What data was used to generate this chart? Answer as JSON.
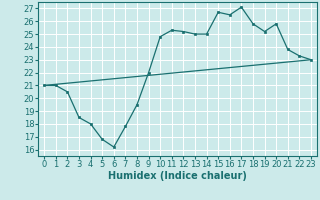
{
  "title": "",
  "xlabel": "Humidex (Indice chaleur)",
  "ylabel": "",
  "bg_color": "#cceaea",
  "grid_color": "#ffffff",
  "line_color": "#1a7070",
  "x_ticks": [
    0,
    1,
    2,
    3,
    4,
    5,
    6,
    7,
    8,
    9,
    10,
    11,
    12,
    13,
    14,
    15,
    16,
    17,
    18,
    19,
    20,
    21,
    22,
    23
  ],
  "y_ticks": [
    16,
    17,
    18,
    19,
    20,
    21,
    22,
    23,
    24,
    25,
    26,
    27
  ],
  "xlim": [
    -0.5,
    23.5
  ],
  "ylim": [
    15.5,
    27.5
  ],
  "line1_x": [
    0,
    1,
    2,
    3,
    4,
    5,
    6,
    7,
    8,
    9,
    10,
    11,
    12,
    13,
    14,
    15,
    16,
    17,
    18,
    19,
    20,
    21,
    22,
    23
  ],
  "line1_y": [
    21.0,
    21.0,
    20.5,
    18.5,
    18.0,
    16.8,
    16.2,
    17.8,
    19.5,
    22.0,
    24.8,
    25.3,
    25.2,
    25.0,
    25.0,
    26.7,
    26.5,
    27.1,
    25.8,
    25.2,
    25.8,
    23.8,
    23.3,
    23.0
  ],
  "line2_x": [
    0,
    23
  ],
  "line2_y": [
    21.0,
    23.0
  ],
  "font_size": 6
}
